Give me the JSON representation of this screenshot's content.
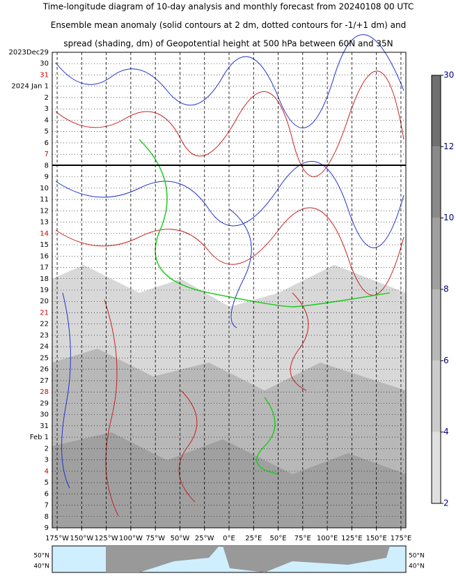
{
  "chart_data": {
    "type": "hovmoller",
    "title_lines": [
      "Time-longitude diagram of 10-day analysis and monthly forecast from 20240108 00 UTC",
      "Ensemble mean anomaly (solid contours at 2 dm, dotted contours for -1/+1 dm) and",
      "spread (shading, dm) of Geopotential height at 500 hPa between 60N and 35N"
    ],
    "y_categories": [
      "2023Dec29",
      "30",
      "31",
      "2024 Jan 1",
      "2",
      "3",
      "4",
      "5",
      "6",
      "7",
      "8",
      "9",
      "10",
      "11",
      "12",
      "13",
      "14",
      "15",
      "16",
      "17",
      "18",
      "19",
      "20",
      "21",
      "22",
      "23",
      "24",
      "25",
      "26",
      "27",
      "28",
      "29",
      "30",
      "31",
      "Feb 1",
      "2",
      "3",
      "4",
      "5",
      "6",
      "7",
      "8",
      "9"
    ],
    "y_category_colors": [
      "#000000",
      "#000000",
      "#cc0000",
      "#000000",
      "#000000",
      "#000000",
      "#000000",
      "#000000",
      "#000000",
      "#cc0000",
      "#000000",
      "#000000",
      "#000000",
      "#000000",
      "#000000",
      "#000000",
      "#cc0000",
      "#000000",
      "#000000",
      "#000000",
      "#000000",
      "#000000",
      "#000000",
      "#cc0000",
      "#000000",
      "#000000",
      "#000000",
      "#000000",
      "#000000",
      "#000000",
      "#cc0000",
      "#000000",
      "#000000",
      "#000000",
      "#000000",
      "#000000",
      "#000000",
      "#cc0000",
      "#000000",
      "#000000",
      "#000000",
      "#000000",
      "#000000"
    ],
    "xlim": [
      -180,
      180
    ],
    "xticks": [
      {
        "value": -175,
        "label": "175°W"
      },
      {
        "value": -150,
        "label": "150°W"
      },
      {
        "value": -125,
        "label": "125°W"
      },
      {
        "value": -100,
        "label": "100°W"
      },
      {
        "value": -75,
        "label": "75°W"
      },
      {
        "value": -50,
        "label": "50°W"
      },
      {
        "value": -25,
        "label": "25°W"
      },
      {
        "value": 0,
        "label": "0°E"
      },
      {
        "value": 25,
        "label": "25°E"
      },
      {
        "value": 50,
        "label": "50°E"
      },
      {
        "value": 75,
        "label": "75°E"
      },
      {
        "value": 100,
        "label": "100°E"
      },
      {
        "value": 125,
        "label": "125°E"
      },
      {
        "value": 150,
        "label": "150°E"
      },
      {
        "value": 175,
        "label": "175°E"
      }
    ],
    "colorbar_levels": [
      30,
      12,
      10,
      8,
      6,
      4,
      2
    ],
    "map_lat_labels": [
      "50°N",
      "40°N"
    ]
  }
}
